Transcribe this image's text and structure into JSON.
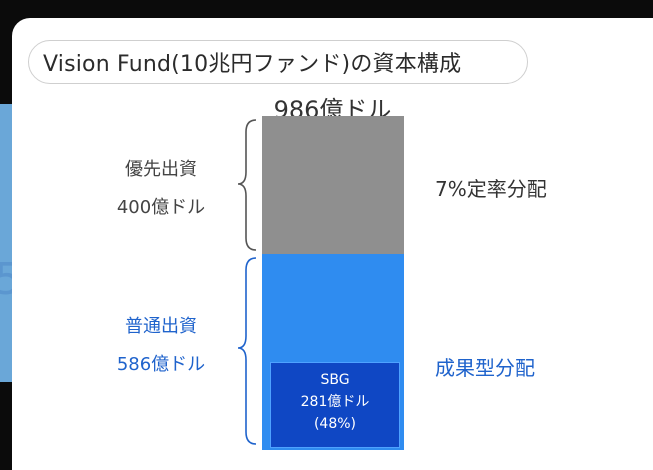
{
  "slide": {
    "title": "Vision Fund(10兆円ファンド)の資本構成",
    "total": "986億ドル"
  },
  "labels": {
    "preferred_line1": "優先出資",
    "preferred_line2": "400億ドル",
    "common_line1": "普通出資",
    "common_line2": "586億ドル",
    "fixed_distribution": "7%定率分配",
    "performance_distribution": "成果型分配",
    "sbg_line1": "SBG",
    "sbg_line2": "281億ドル",
    "sbg_line3": "(48%)"
  },
  "colors": {
    "preferred": "#8f8f8f",
    "common": "#2f8cf0",
    "sbg": "#0f47c4",
    "accent_text": "#1f63cc"
  },
  "chart_data": {
    "type": "bar",
    "stacked": true,
    "title": "Vision Fund(10兆円ファンド)の資本構成",
    "total_label": "986億ドル",
    "categories": [
      "Vision Fund"
    ],
    "series": [
      {
        "name": "優先出資",
        "values": [
          400
        ],
        "label": "400億ドル",
        "color": "#8f8f8f"
      },
      {
        "name": "普通出資",
        "values": [
          586
        ],
        "label": "586億ドル",
        "color": "#2f8cf0"
      }
    ],
    "sub_series": [
      {
        "name": "SBG",
        "parent": "普通出資",
        "values": [
          281
        ],
        "label": "281億ドル",
        "share": "(48%)",
        "color": "#0f47c4"
      }
    ],
    "annotations": [
      "7%定率分配",
      "成果型分配"
    ],
    "unit": "億ドル"
  }
}
